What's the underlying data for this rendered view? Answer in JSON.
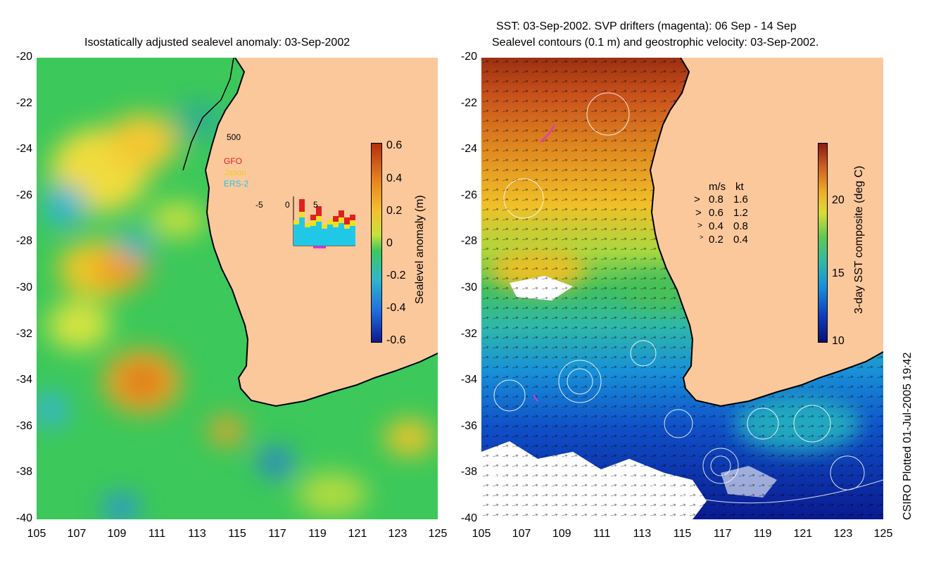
{
  "left": {
    "title": "Isostatically adjusted sealevel anomaly: 03-Sep-2002",
    "colorbar_label": "Sealevel anomaly (m)",
    "colorbar_ticks": [
      "0.6",
      "0.4",
      "0.2",
      "0",
      "-0.2",
      "-0.4",
      "-0.6"
    ],
    "colorbar_range": [
      -0.6,
      0.6
    ],
    "inset": {
      "ymax_label": "500",
      "satellites": [
        "GFO",
        "Jason",
        "ERS-2"
      ],
      "satellite_colors": [
        "#e02020",
        "#f0e020",
        "#20c8e8"
      ],
      "x_ticks": [
        "-5",
        "0",
        "5"
      ]
    }
  },
  "right": {
    "title_line1": "SST: 03-Sep-2002. SVP drifters (magenta): 06 Sep - 14 Sep",
    "title_line2": "Sealevel contours (0.1 m) and geostrophic velocity: 03-Sep-2002.",
    "colorbar_label": "3-day SST composite (deg C)",
    "colorbar_ticks": [
      "20",
      "15",
      "10"
    ],
    "colorbar_range": [
      10,
      23.5
    ],
    "speed_legend": {
      "header_ms": "m/s",
      "header_kt": "kt",
      "rows": [
        {
          "ms": "0.8",
          "kt": "1.6"
        },
        {
          "ms": "0.6",
          "kt": "1.2"
        },
        {
          "ms": "0.4",
          "kt": "0.8"
        },
        {
          "ms": "0.2",
          "kt": "0.4"
        }
      ]
    }
  },
  "axes": {
    "y_ticks": [
      "-20",
      "-22",
      "-24",
      "-26",
      "-28",
      "-30",
      "-32",
      "-34",
      "-36",
      "-38",
      "-40"
    ],
    "x_ticks": [
      "105",
      "107",
      "109",
      "111",
      "113",
      "115",
      "117",
      "119",
      "121",
      "123",
      "125"
    ],
    "lat_range": [
      -40,
      -20
    ],
    "lon_range": [
      105,
      125
    ]
  },
  "credit": "CSIRO Plotted 01-Jul-2005 19:42",
  "colors": {
    "land": "#fbc89c",
    "coast": "#000000"
  }
}
